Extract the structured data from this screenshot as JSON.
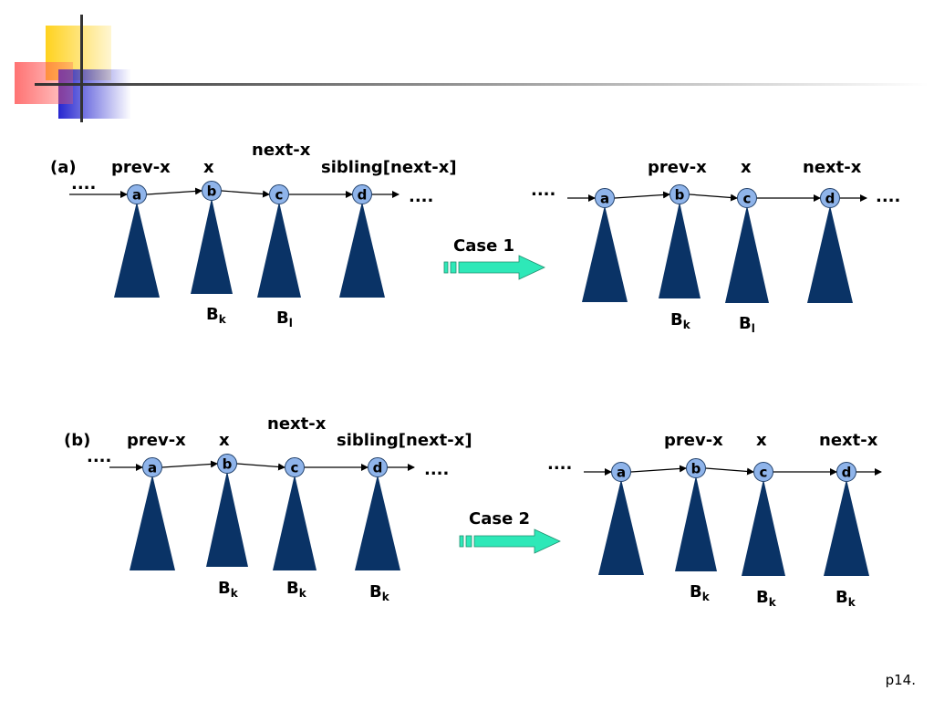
{
  "page_number": "p14.",
  "panels": [
    {
      "id": "a",
      "tag": "(a)",
      "case_label": "Case 1",
      "left": {
        "ptr_prev": "prev-x",
        "ptr_x": "x",
        "ptr_next": "next-x",
        "ptr_sibling": "sibling[next-x]",
        "dots_left": "....",
        "dots_right": "....",
        "nodes": [
          "a",
          "b",
          "c",
          "d"
        ],
        "tree_labels": {
          "b": {
            "base": "B",
            "sub": "k"
          },
          "c": {
            "base": "B",
            "sub": "l"
          }
        }
      },
      "right": {
        "ptr_prev": "prev-x",
        "ptr_x": "x",
        "ptr_next": "next-x",
        "dots_left": "....",
        "dots_right": "....",
        "nodes": [
          "a",
          "b",
          "c",
          "d"
        ],
        "tree_labels": {
          "b": {
            "base": "B",
            "sub": "k"
          },
          "c": {
            "base": "B",
            "sub": "l"
          }
        }
      }
    },
    {
      "id": "b",
      "tag": "(b)",
      "case_label": "Case 2",
      "left": {
        "ptr_prev": "prev-x",
        "ptr_x": "x",
        "ptr_next": "next-x",
        "ptr_sibling": "sibling[next-x]",
        "dots_left": "....",
        "dots_right": "....",
        "nodes": [
          "a",
          "b",
          "c",
          "d"
        ],
        "tree_labels": {
          "b": {
            "base": "B",
            "sub": "k"
          },
          "c": {
            "base": "B",
            "sub": "k"
          },
          "d": {
            "base": "B",
            "sub": "k"
          }
        }
      },
      "right": {
        "ptr_prev": "prev-x",
        "ptr_x": "x",
        "ptr_next": "next-x",
        "dots_left": "....",
        "nodes": [
          "a",
          "b",
          "c",
          "d"
        ],
        "tree_labels": {
          "b": {
            "base": "B",
            "sub": "k"
          },
          "c": {
            "base": "B",
            "sub": "k"
          },
          "d": {
            "base": "B",
            "sub": "k"
          }
        }
      }
    }
  ],
  "colors": {
    "triangle": "#0a3366",
    "node_fill": "#8fb4ea",
    "case_arrow": "#2ee8b8",
    "deco_yellow": "#ffd21e",
    "deco_red": "#ff5a5a",
    "deco_blue": "#2626d0"
  }
}
